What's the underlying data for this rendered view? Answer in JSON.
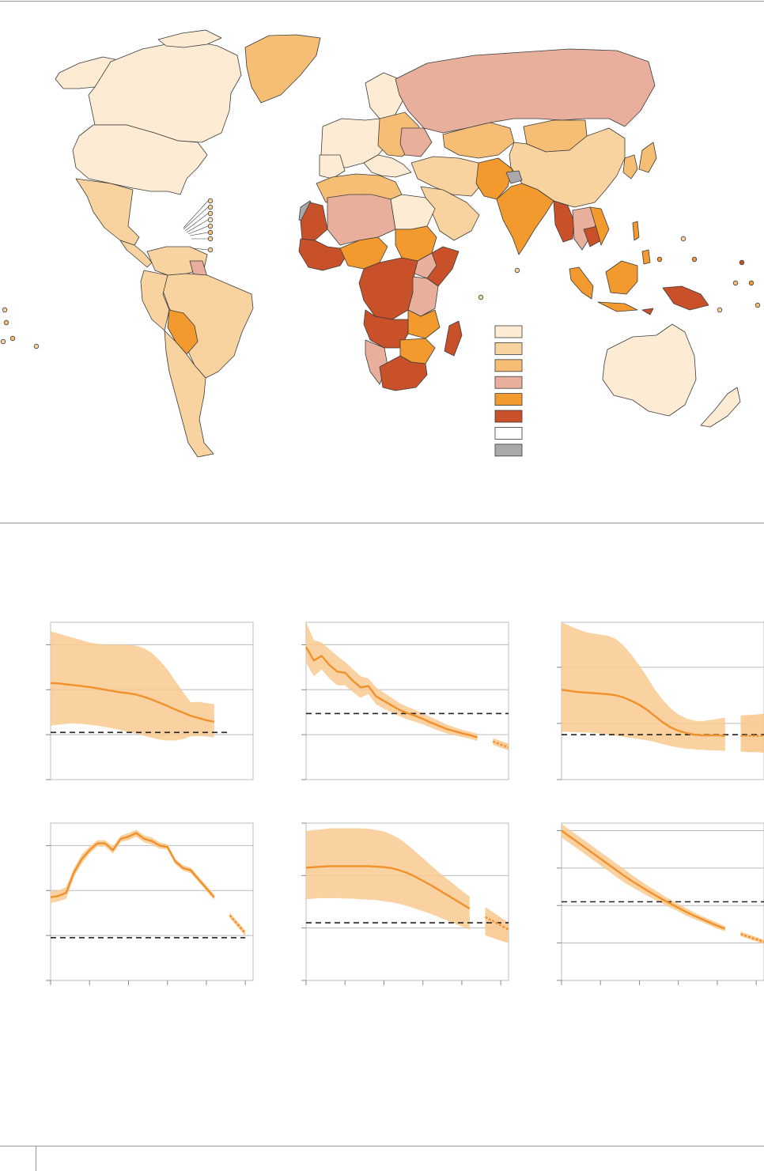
{
  "colors": {
    "c1": "#fdebd3",
    "c2": "#f9d39f",
    "c3": "#f6bd74",
    "c4": "#e8b09c",
    "c5": "#f29a2e",
    "c6": "#c9512a",
    "c7": "#ffffff",
    "c8": "#a9a9a9",
    "border": "#3b3b3b",
    "band": "#f9c98f",
    "line": "#f0912b",
    "dash": "#222222",
    "grid": "#bbbbbb"
  },
  "legend": {
    "items": [
      {
        "color": "c1"
      },
      {
        "color": "c2"
      },
      {
        "color": "c3"
      },
      {
        "color": "c4"
      },
      {
        "color": "c5"
      },
      {
        "color": "c6"
      },
      {
        "color": "c7"
      },
      {
        "color": "c8"
      }
    ]
  },
  "chart_data": [
    {
      "type": "line",
      "ylim": [
        0,
        3.5
      ],
      "gridlines": [
        1,
        2,
        3
      ],
      "target": 1.05,
      "xlim": [
        0,
        26
      ],
      "series": [
        {
          "values": [
            2.15,
            2.14,
            2.12,
            2.1,
            2.08,
            2.06,
            2.03,
            2.0,
            1.97,
            1.94,
            1.92,
            1.89,
            1.84,
            1.78,
            1.71,
            1.64,
            1.56,
            1.49,
            1.42,
            1.37,
            1.32,
            1.29,
            1.27,
            1.26
          ]
        }
      ],
      "band_upper": [
        3.3,
        3.25,
        3.2,
        3.15,
        3.1,
        3.05,
        3.02,
        3.0,
        3.0,
        3.0,
        3.0,
        2.98,
        2.92,
        2.82,
        2.65,
        2.45,
        2.2,
        1.95,
        1.72,
        1.73,
        1.7,
        1.68,
        1.66,
        1.62
      ],
      "band_lower": [
        1.2,
        1.22,
        1.24,
        1.25,
        1.24,
        1.22,
        1.2,
        1.17,
        1.14,
        1.1,
        1.06,
        1.02,
        0.97,
        0.93,
        0.89,
        0.87,
        0.87,
        0.9,
        0.96,
        0.97,
        0.96,
        0.94,
        0.93,
        0.9
      ],
      "gap_after": 22,
      "x_ticks": []
    },
    {
      "type": "line",
      "ylim": [
        0,
        3.5
      ],
      "gridlines": [
        1,
        2,
        3
      ],
      "target": 1.47,
      "xlim": [
        0,
        26
      ],
      "series": [
        {
          "values": [
            2.95,
            2.65,
            2.75,
            2.55,
            2.4,
            2.38,
            2.2,
            2.05,
            2.08,
            1.85,
            1.75,
            1.65,
            1.55,
            1.48,
            1.42,
            1.35,
            1.27,
            1.2,
            1.13,
            1.08,
            1.03,
            0.99,
            0.94,
            0.9,
            0.85,
            0.78,
            0.72
          ]
        }
      ],
      "band_upper": [
        3.5,
        3.1,
        3.05,
        2.9,
        2.75,
        2.62,
        2.46,
        2.3,
        2.25,
        2.05,
        1.93,
        1.82,
        1.7,
        1.62,
        1.55,
        1.47,
        1.39,
        1.31,
        1.23,
        1.17,
        1.11,
        1.07,
        1.02,
        0.97,
        0.92,
        0.86,
        0.8
      ],
      "band_lower": [
        2.6,
        2.3,
        2.45,
        2.25,
        2.1,
        2.1,
        1.95,
        1.82,
        1.9,
        1.67,
        1.58,
        1.5,
        1.41,
        1.34,
        1.29,
        1.23,
        1.16,
        1.09,
        1.03,
        0.99,
        0.95,
        0.91,
        0.86,
        0.82,
        0.78,
        0.71,
        0.65
      ],
      "gap_after": 23,
      "x_ticks": []
    },
    {
      "type": "line",
      "ylim": [
        0,
        2.8
      ],
      "gridlines": [
        1,
        2
      ],
      "target": 0.8,
      "xlim": [
        0,
        26
      ],
      "series": [
        {
          "values": [
            1.6,
            1.58,
            1.56,
            1.55,
            1.54,
            1.53,
            1.52,
            1.5,
            1.46,
            1.4,
            1.33,
            1.24,
            1.13,
            1.02,
            0.93,
            0.87,
            0.83,
            0.8,
            0.79,
            0.79,
            0.79,
            0.78,
            0.78,
            0.78,
            0.78,
            0.78,
            0.78
          ]
        }
      ],
      "band_upper": [
        2.8,
        2.74,
        2.68,
        2.63,
        2.6,
        2.58,
        2.56,
        2.5,
        2.38,
        2.22,
        2.03,
        1.82,
        1.6,
        1.42,
        1.27,
        1.16,
        1.09,
        1.05,
        1.04,
        1.06,
        1.08,
        1.1,
        1.12,
        1.14,
        1.15,
        1.16,
        1.17
      ],
      "band_lower": [
        0.85,
        0.85,
        0.84,
        0.84,
        0.83,
        0.82,
        0.8,
        0.78,
        0.76,
        0.74,
        0.72,
        0.7,
        0.67,
        0.63,
        0.6,
        0.57,
        0.55,
        0.54,
        0.53,
        0.52,
        0.52,
        0.51,
        0.5,
        0.5,
        0.49,
        0.49,
        0.48
      ],
      "gap_after": 22,
      "x_ticks": []
    },
    {
      "type": "line",
      "ylim": [
        0,
        3.5
      ],
      "gridlines": [
        1,
        2,
        3
      ],
      "target": 0.95,
      "xlim": [
        0,
        26
      ],
      "series": [
        {
          "values": [
            1.85,
            1.88,
            1.95,
            2.4,
            2.7,
            2.9,
            3.05,
            3.05,
            2.9,
            3.15,
            3.2,
            3.28,
            3.15,
            3.1,
            3.0,
            2.97,
            2.65,
            2.5,
            2.45,
            2.25,
            2.05,
            1.85,
            1.65,
            1.45,
            1.25,
            1.05
          ]
        }
      ],
      "band_upper": [
        1.98,
        2.0,
        2.08,
        2.5,
        2.8,
        2.98,
        3.12,
        3.12,
        2.98,
        3.22,
        3.28,
        3.35,
        3.23,
        3.18,
        3.07,
        3.03,
        2.71,
        2.56,
        2.51,
        2.31,
        2.11,
        1.91,
        1.71,
        1.51,
        1.31,
        1.11
      ],
      "band_lower": [
        1.72,
        1.76,
        1.82,
        2.3,
        2.6,
        2.82,
        2.98,
        2.98,
        2.82,
        3.08,
        3.12,
        3.2,
        3.07,
        3.02,
        2.93,
        2.91,
        2.59,
        2.44,
        2.39,
        2.19,
        1.99,
        1.79,
        1.59,
        1.39,
        1.19,
        0.99
      ],
      "gap_after": 22,
      "x_ticks": [
        0,
        5,
        10,
        15,
        20,
        25
      ]
    },
    {
      "type": "line",
      "ylim": [
        0,
        3.0
      ],
      "gridlines": [
        1,
        2,
        3
      ],
      "target": 1.1,
      "xlim": [
        0,
        26
      ],
      "series": [
        {
          "values": [
            2.15,
            2.16,
            2.17,
            2.18,
            2.18,
            2.18,
            2.18,
            2.18,
            2.18,
            2.17,
            2.16,
            2.14,
            2.1,
            2.05,
            1.98,
            1.9,
            1.82,
            1.73,
            1.64,
            1.55,
            1.46,
            1.37,
            1.29,
            1.21,
            1.13,
            1.05,
            0.97
          ]
        }
      ],
      "band_upper": [
        2.85,
        2.87,
        2.88,
        2.9,
        2.9,
        2.9,
        2.9,
        2.9,
        2.89,
        2.87,
        2.84,
        2.78,
        2.7,
        2.59,
        2.46,
        2.33,
        2.2,
        2.07,
        1.95,
        1.83,
        1.71,
        1.6,
        1.5,
        1.4,
        1.3,
        1.2,
        1.1
      ],
      "band_lower": [
        1.55,
        1.56,
        1.57,
        1.57,
        1.57,
        1.56,
        1.56,
        1.55,
        1.54,
        1.53,
        1.51,
        1.49,
        1.46,
        1.42,
        1.37,
        1.32,
        1.27,
        1.21,
        1.15,
        1.09,
        1.03,
        0.97,
        0.91,
        0.86,
        0.81,
        0.76,
        0.71
      ],
      "gap_after": 22,
      "x_ticks": [
        0,
        5,
        10,
        15,
        20,
        25
      ]
    },
    {
      "type": "line",
      "ylim": [
        0,
        4.2
      ],
      "gridlines": [
        1,
        2,
        3,
        4
      ],
      "target": 2.1,
      "xlim": [
        0,
        26
      ],
      "series": [
        {
          "values": [
            4.0,
            3.85,
            3.7,
            3.55,
            3.4,
            3.25,
            3.1,
            2.95,
            2.8,
            2.66,
            2.53,
            2.4,
            2.28,
            2.16,
            2.05,
            1.94,
            1.83,
            1.73,
            1.64,
            1.55,
            1.46,
            1.38,
            1.31,
            1.24,
            1.17,
            1.1,
            1.03
          ]
        }
      ],
      "band_upper": [
        4.18,
        4.03,
        3.88,
        3.73,
        3.58,
        3.43,
        3.28,
        3.13,
        2.98,
        2.82,
        2.68,
        2.54,
        2.41,
        2.28,
        2.16,
        2.04,
        1.93,
        1.82,
        1.72,
        1.63,
        1.54,
        1.45,
        1.38,
        1.3,
        1.23,
        1.16,
        1.08
      ],
      "band_lower": [
        3.82,
        3.67,
        3.52,
        3.37,
        3.22,
        3.07,
        2.92,
        2.77,
        2.62,
        2.5,
        2.38,
        2.26,
        2.15,
        2.04,
        1.94,
        1.84,
        1.73,
        1.64,
        1.56,
        1.47,
        1.38,
        1.31,
        1.24,
        1.18,
        1.11,
        1.04,
        0.98
      ],
      "gap_after": 22,
      "x_ticks": [
        0,
        5,
        10,
        15,
        20,
        25
      ]
    }
  ]
}
